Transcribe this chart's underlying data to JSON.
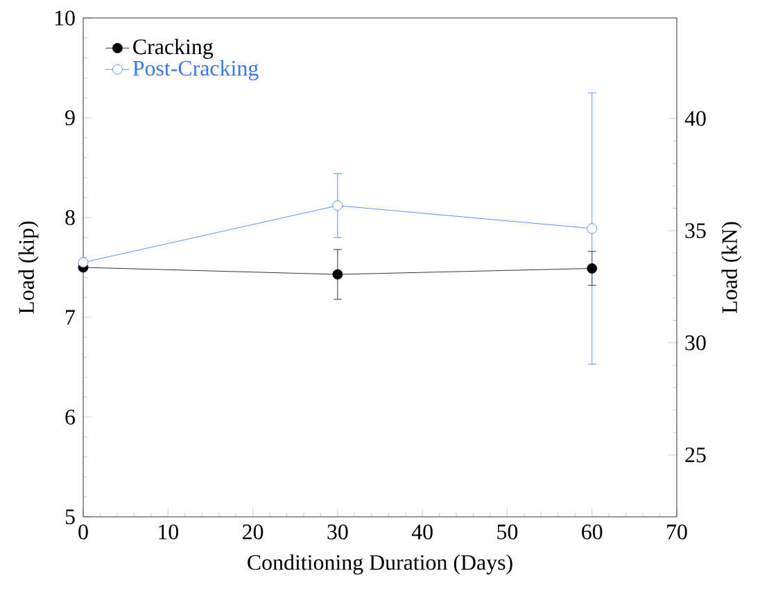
{
  "chart_data": {
    "type": "line",
    "xlabel": "Conditioning Duration (Days)",
    "ylabel": "Load (kip)",
    "y2label": "Load (kN)",
    "x": [
      0,
      30,
      60
    ],
    "series": [
      {
        "name": "Cracking",
        "color": "#000000",
        "values": [
          7.5,
          7.43,
          7.49
        ],
        "errors": [
          null,
          0.25,
          0.17
        ]
      },
      {
        "name": "Post-Cracking",
        "color": "#3377ff",
        "values": [
          7.55,
          8.12,
          7.89
        ],
        "errors": [
          null,
          0.32,
          1.36
        ]
      }
    ],
    "xlim": [
      0,
      70
    ],
    "xticks": [
      0,
      10,
      20,
      30,
      40,
      50,
      60,
      70
    ],
    "ylim": [
      5,
      10
    ],
    "yticks": [
      5,
      6,
      7,
      8,
      9,
      10
    ],
    "y2lim": [
      22.24,
      44.48
    ],
    "y2ticks": [
      25,
      30,
      35,
      40
    ],
    "legend": "top left",
    "marker": "circle",
    "line_style": "solid",
    "grid": false
  }
}
